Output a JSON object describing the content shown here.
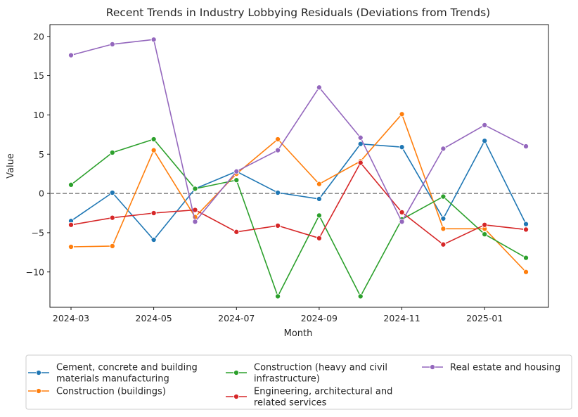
{
  "chart_data": {
    "type": "line",
    "title": "Recent Trends in Industry Lobbying Residuals (Deviations from Trends)",
    "xlabel": "Month",
    "ylabel": "Value",
    "x": [
      "2024-03",
      "2024-04",
      "2024-05",
      "2024-06",
      "2024-07",
      "2024-08",
      "2024-09",
      "2024-10",
      "2024-11",
      "2024-12",
      "2025-01",
      "2025-02"
    ],
    "x_tick_labels": [
      "2024-03",
      "2024-05",
      "2024-07",
      "2024-09",
      "2024-11",
      "2025-01"
    ],
    "y_ticks": [
      -10,
      -5,
      0,
      5,
      10,
      15,
      20
    ],
    "ylim": [
      -14.5,
      21.5
    ],
    "reference_line": {
      "y": 0,
      "style": "dashed",
      "color": "#808080"
    },
    "grid": false,
    "legend_placement": "below plot",
    "series": [
      {
        "name": "Cement, concrete and building\nmaterials manufacturing",
        "color": "#1f77b4",
        "values": [
          -3.5,
          0.1,
          -5.9,
          0.6,
          2.8,
          0.1,
          -0.7,
          6.3,
          5.9,
          -3.2,
          6.7,
          -3.9
        ]
      },
      {
        "name": "Construction (buildings)",
        "color": "#ff7f0e",
        "values": [
          -6.8,
          -6.7,
          5.5,
          -3.0,
          2.5,
          6.9,
          1.2,
          4.1,
          10.1,
          -4.5,
          -4.5,
          -10.0
        ]
      },
      {
        "name": "Construction (heavy and civil\ninfrastructure)",
        "color": "#2ca02c",
        "values": [
          1.1,
          5.2,
          6.9,
          0.6,
          1.7,
          -13.1,
          -2.8,
          -13.1,
          -3.3,
          -0.4,
          -5.2,
          -8.2
        ]
      },
      {
        "name": "Engineering, architectural and\nrelated services",
        "color": "#d62728",
        "values": [
          -4.0,
          -3.1,
          -2.5,
          -2.1,
          -4.9,
          -4.1,
          -5.7,
          3.9,
          -2.4,
          -6.5,
          -4.0,
          -4.6
        ]
      },
      {
        "name": "Real estate and housing",
        "color": "#9467bd",
        "values": [
          17.6,
          19.0,
          19.6,
          -3.6,
          2.8,
          5.5,
          13.5,
          7.1,
          -3.6,
          5.7,
          8.7,
          6.0
        ]
      }
    ]
  }
}
